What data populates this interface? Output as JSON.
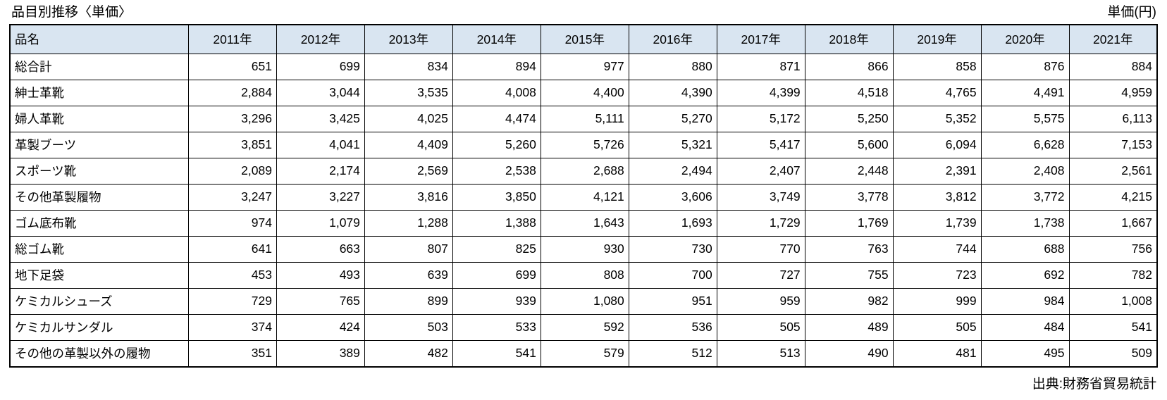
{
  "page": {
    "title": "品目別推移〈単価〉",
    "unit_label": "単価(円)",
    "source": "出典:財務省貿易統計"
  },
  "colors": {
    "header_bg": "#D9E5F1",
    "border": "#000000"
  },
  "chart_data": {
    "type": "table",
    "title": "品目別推移〈単価〉",
    "unit": "単価(円)",
    "source": "出典:財務省貿易統計",
    "columns": [
      "品名",
      "2011年",
      "2012年",
      "2013年",
      "2014年",
      "2015年",
      "2016年",
      "2017年",
      "2018年",
      "2019年",
      "2020年",
      "2021年"
    ],
    "rows": [
      {
        "name": "総合計",
        "values": [
          651,
          699,
          834,
          894,
          977,
          880,
          871,
          866,
          858,
          876,
          884
        ]
      },
      {
        "name": "紳士革靴",
        "values": [
          2884,
          3044,
          3535,
          4008,
          4400,
          4390,
          4399,
          4518,
          4765,
          4491,
          4959
        ]
      },
      {
        "name": "婦人革靴",
        "values": [
          3296,
          3425,
          4025,
          4474,
          5111,
          5270,
          5172,
          5250,
          5352,
          5575,
          6113
        ]
      },
      {
        "name": "革製ブーツ",
        "values": [
          3851,
          4041,
          4409,
          5260,
          5726,
          5321,
          5417,
          5600,
          6094,
          6628,
          7153
        ]
      },
      {
        "name": "スポーツ靴",
        "values": [
          2089,
          2174,
          2569,
          2538,
          2688,
          2494,
          2407,
          2448,
          2391,
          2408,
          2561
        ]
      },
      {
        "name": "その他革製履物",
        "values": [
          3247,
          3227,
          3816,
          3850,
          4121,
          3606,
          3749,
          3778,
          3812,
          3772,
          4215
        ]
      },
      {
        "name": "ゴム底布靴",
        "values": [
          974,
          1079,
          1288,
          1388,
          1643,
          1693,
          1729,
          1769,
          1739,
          1738,
          1667
        ]
      },
      {
        "name": "総ゴム靴",
        "values": [
          641,
          663,
          807,
          825,
          930,
          730,
          770,
          763,
          744,
          688,
          756
        ]
      },
      {
        "name": "地下足袋",
        "values": [
          453,
          493,
          639,
          699,
          808,
          700,
          727,
          755,
          723,
          692,
          782
        ]
      },
      {
        "name": "ケミカルシューズ",
        "values": [
          729,
          765,
          899,
          939,
          1080,
          951,
          959,
          982,
          999,
          984,
          1008
        ]
      },
      {
        "name": "ケミカルサンダル",
        "values": [
          374,
          424,
          503,
          533,
          592,
          536,
          505,
          489,
          505,
          484,
          541
        ]
      },
      {
        "name": "その他の革製以外の履物",
        "values": [
          351,
          389,
          482,
          541,
          579,
          512,
          513,
          490,
          481,
          495,
          509
        ]
      }
    ]
  }
}
